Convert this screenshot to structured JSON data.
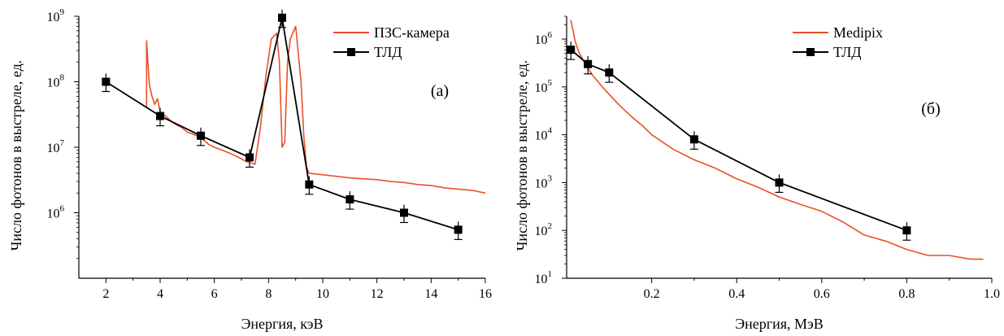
{
  "chart_data": [
    {
      "type": "line",
      "panel_label": "(а)",
      "xlabel": "Энергия, кэВ",
      "ylabel": "Число фотонов в выстреле, ед.",
      "scale": "log-y",
      "xlim": [
        1,
        16
      ],
      "ylim": [
        100000,
        1000000000
      ],
      "xticks": [
        2,
        4,
        6,
        8,
        10,
        12,
        14,
        16
      ],
      "xtick_labels": [
        "2",
        "4",
        "6",
        "8",
        "10",
        "12",
        "14",
        "16"
      ],
      "yticks": [
        1000000,
        10000000,
        100000000,
        1000000000
      ],
      "ytick_labels": [
        {
          "base": "10",
          "exp": "6"
        },
        {
          "base": "10",
          "exp": "7"
        },
        {
          "base": "10",
          "exp": "8"
        },
        {
          "base": "10",
          "exp": "9"
        }
      ],
      "legend_position": "top-right",
      "series": [
        {
          "name": "ПЗС-камера",
          "color": "#e8502a",
          "marker": "none",
          "x": [
            3.5,
            3.5,
            3.6,
            3.7,
            3.8,
            3.9,
            4.0,
            4.2,
            4.4,
            4.6,
            4.8,
            5.0,
            5.2,
            5.5,
            5.8,
            6.0,
            6.3,
            6.6,
            6.9,
            7.2,
            7.5,
            7.7,
            7.9,
            8.1,
            8.3,
            8.4,
            8.5,
            8.6,
            8.7,
            8.8,
            9.0,
            9.2,
            9.3,
            9.4,
            9.5,
            10.0,
            10.5,
            11.0,
            11.5,
            12.0,
            12.5,
            13.0,
            13.5,
            14.0,
            14.5,
            15.0,
            15.5,
            16.0
          ],
          "y": [
            40000000,
            420000000,
            90000000,
            60000000,
            45000000,
            55000000,
            35000000,
            30000000,
            25000000,
            22000000,
            20000000,
            17000000,
            16000000,
            14000000,
            11000000,
            10000000,
            9000000,
            8000000,
            7000000,
            6000000,
            5500000,
            20000000,
            120000000,
            450000000,
            550000000,
            200000000,
            10000000,
            12000000,
            200000000,
            450000000,
            700000000,
            100000000,
            15000000,
            5000000,
            4000000,
            3800000,
            3600000,
            3400000,
            3300000,
            3200000,
            3000000,
            2900000,
            2700000,
            2600000,
            2400000,
            2300000,
            2200000,
            2000000
          ]
        },
        {
          "name": "ТЛД",
          "color": "#000000",
          "marker": "square",
          "x": [
            2,
            4,
            5.5,
            7.3,
            8.5,
            9.5,
            11,
            13,
            15
          ],
          "y": [
            100000000,
            30000000,
            15000000,
            7000000,
            950000000,
            2700000,
            1600000,
            1000000,
            550000
          ]
        }
      ]
    },
    {
      "type": "line",
      "panel_label": "(б)",
      "xlabel": "Энергия, МэВ",
      "ylabel": "Число фотонов в выстреле, ед.",
      "scale": "log-y",
      "xlim": [
        0,
        1.0
      ],
      "ylim": [
        10,
        3000000
      ],
      "xticks": [
        0.2,
        0.4,
        0.6,
        0.8,
        1.0
      ],
      "xtick_labels": [
        "0.2",
        "0.4",
        "0.6",
        "0.8",
        "1.0"
      ],
      "yticks": [
        10,
        100,
        1000,
        10000,
        100000,
        1000000
      ],
      "ytick_labels": [
        {
          "base": "10",
          "exp": "1"
        },
        {
          "base": "10",
          "exp": "2"
        },
        {
          "base": "10",
          "exp": "3"
        },
        {
          "base": "10",
          "exp": "4"
        },
        {
          "base": "10",
          "exp": "5"
        },
        {
          "base": "10",
          "exp": "6"
        }
      ],
      "legend_position": "top-right",
      "series": [
        {
          "name": "Medipix",
          "color": "#e8502a",
          "marker": "none",
          "x": [
            0.01,
            0.02,
            0.03,
            0.04,
            0.05,
            0.06,
            0.08,
            0.1,
            0.12,
            0.15,
            0.18,
            0.2,
            0.25,
            0.3,
            0.35,
            0.4,
            0.45,
            0.5,
            0.55,
            0.6,
            0.65,
            0.7,
            0.75,
            0.8,
            0.85,
            0.9,
            0.95,
            0.98
          ],
          "y": [
            2500000,
            900000,
            500000,
            350000,
            250000,
            180000,
            110000,
            70000,
            45000,
            25000,
            15000,
            10000,
            5000,
            3000,
            2000,
            1200,
            800,
            500,
            350,
            250,
            150,
            80,
            60,
            40,
            30,
            30,
            25,
            25
          ]
        },
        {
          "name": "ТЛД",
          "color": "#000000",
          "marker": "square",
          "x": [
            0.01,
            0.05,
            0.1,
            0.3,
            0.5,
            0.8
          ],
          "y": [
            600000,
            300000,
            200000,
            8000,
            1000,
            100
          ]
        }
      ]
    }
  ]
}
